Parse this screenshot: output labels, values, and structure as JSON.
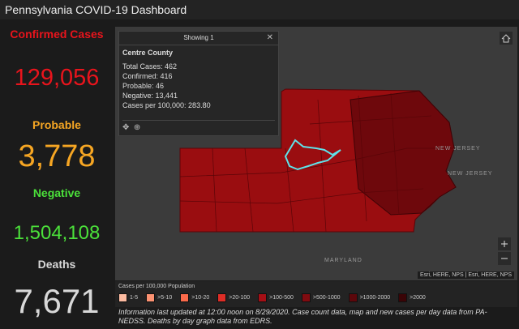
{
  "header": {
    "title": "Pennsylvania COVID-19 Dashboard"
  },
  "stats": [
    {
      "label": "Confirmed Cases",
      "value": "129,056",
      "color": "#e8141c"
    },
    {
      "label": "Probable",
      "value": "3,778",
      "color": "#f6a623"
    },
    {
      "label": "Negative",
      "value": "1,504,108",
      "color": "#4be03a"
    },
    {
      "label": "Deaths",
      "value": "7,671",
      "color": "#d8d8d8"
    }
  ],
  "popup": {
    "header": "Showing 1",
    "title": "Centre County",
    "lines": [
      "Total Cases: 462",
      "Confirmed: 416",
      "Probable: 46",
      "Negative: 13,441",
      "Cases per 100,000: 283.80"
    ]
  },
  "map": {
    "labels": [
      "NEW JERSEY",
      "NEW JERSEY",
      "MARYLAND"
    ],
    "attribution": "Esri, HERE, NPS | Esri, HERE, NPS"
  },
  "legend": {
    "title": "Cases per 100,000 Population",
    "items": [
      {
        "label": "1-5",
        "color": "#fcbba1"
      },
      {
        "label": ">5-10",
        "color": "#fc9272"
      },
      {
        "label": ">10-20",
        "color": "#fb6a4a"
      },
      {
        "label": ">20-100",
        "color": "#de2d26"
      },
      {
        "label": ">100-500",
        "color": "#a50f15"
      },
      {
        "label": ">500-1000",
        "color": "#800b10"
      },
      {
        "label": ">1000-2000",
        "color": "#5c070b"
      },
      {
        "label": ">2000",
        "color": "#3a0406"
      }
    ]
  },
  "footer": {
    "note": "Information last updated at 12:00 noon on 8/29/2020. Case count data, map and new cases per day data from PA-NEDSS.  Deaths by day graph data from EDRS."
  }
}
